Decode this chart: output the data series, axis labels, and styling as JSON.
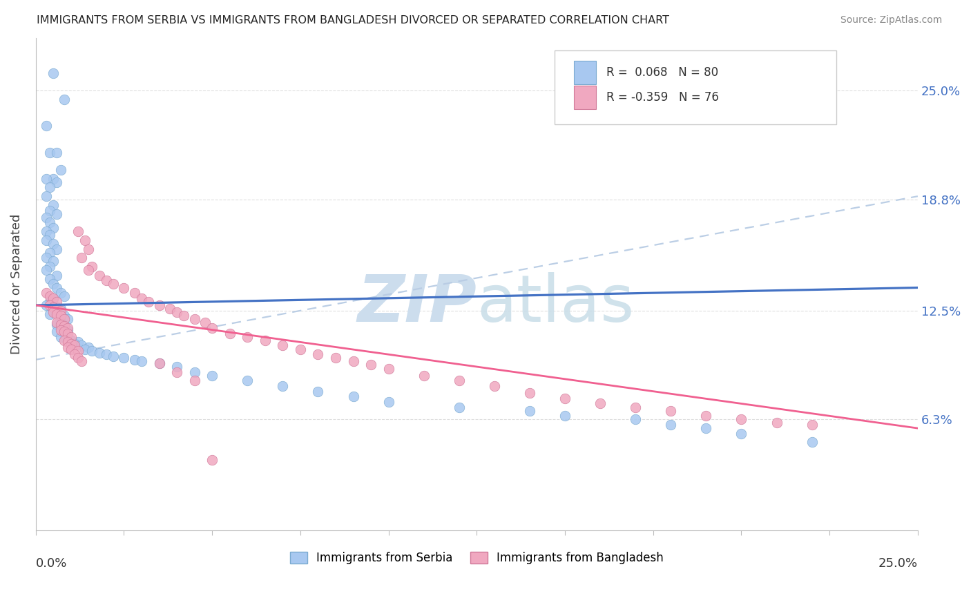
{
  "title": "IMMIGRANTS FROM SERBIA VS IMMIGRANTS FROM BANGLADESH DIVORCED OR SEPARATED CORRELATION CHART",
  "source": "Source: ZipAtlas.com",
  "ylabel": "Divorced or Separated",
  "ytick_labels": [
    "6.3%",
    "12.5%",
    "18.8%",
    "25.0%"
  ],
  "ytick_values": [
    0.063,
    0.125,
    0.188,
    0.25
  ],
  "xlim": [
    0.0,
    0.25
  ],
  "ylim": [
    0.0,
    0.28
  ],
  "serbia_color": "#a8c8f0",
  "serbia_edge_color": "#7aaad0",
  "bangladesh_color": "#f0a8c0",
  "bangladesh_edge_color": "#d07898",
  "serbia_line_color": "#4472c4",
  "bangladesh_line_color": "#f06090",
  "trend_dashed_color": "#b8cce4",
  "watermark_color": "#ccdded",
  "serbia_line_x0": 0.0,
  "serbia_line_x1": 0.25,
  "serbia_line_y0": 0.128,
  "serbia_line_y1": 0.138,
  "bangladesh_line_x0": 0.0,
  "bangladesh_line_x1": 0.25,
  "bangladesh_line_y0": 0.128,
  "bangladesh_line_y1": 0.058,
  "dashed_line_x0": 0.0,
  "dashed_line_x1": 0.25,
  "dashed_line_y0": 0.097,
  "dashed_line_y1": 0.19,
  "serbia_scatter_x": [
    0.005,
    0.008,
    0.003,
    0.004,
    0.006,
    0.007,
    0.005,
    0.003,
    0.006,
    0.004,
    0.003,
    0.005,
    0.004,
    0.006,
    0.003,
    0.004,
    0.005,
    0.003,
    0.004,
    0.003,
    0.005,
    0.006,
    0.004,
    0.003,
    0.005,
    0.004,
    0.003,
    0.006,
    0.004,
    0.005,
    0.006,
    0.007,
    0.008,
    0.005,
    0.004,
    0.003,
    0.006,
    0.007,
    0.005,
    0.004,
    0.008,
    0.009,
    0.007,
    0.006,
    0.008,
    0.007,
    0.009,
    0.006,
    0.008,
    0.007,
    0.01,
    0.012,
    0.011,
    0.013,
    0.015,
    0.014,
    0.016,
    0.018,
    0.02,
    0.022,
    0.025,
    0.028,
    0.03,
    0.035,
    0.04,
    0.045,
    0.05,
    0.06,
    0.07,
    0.08,
    0.09,
    0.1,
    0.12,
    0.14,
    0.15,
    0.17,
    0.18,
    0.19,
    0.2,
    0.22
  ],
  "serbia_scatter_y": [
    0.26,
    0.245,
    0.23,
    0.215,
    0.215,
    0.205,
    0.2,
    0.2,
    0.198,
    0.195,
    0.19,
    0.185,
    0.182,
    0.18,
    0.178,
    0.175,
    0.172,
    0.17,
    0.168,
    0.165,
    0.163,
    0.16,
    0.158,
    0.155,
    0.153,
    0.15,
    0.148,
    0.145,
    0.143,
    0.14,
    0.138,
    0.135,
    0.133,
    0.132,
    0.13,
    0.128,
    0.127,
    0.126,
    0.125,
    0.123,
    0.122,
    0.12,
    0.118,
    0.117,
    0.116,
    0.115,
    0.114,
    0.113,
    0.112,
    0.11,
    0.108,
    0.107,
    0.106,
    0.105,
    0.104,
    0.103,
    0.102,
    0.101,
    0.1,
    0.099,
    0.098,
    0.097,
    0.096,
    0.095,
    0.093,
    0.09,
    0.088,
    0.085,
    0.082,
    0.079,
    0.076,
    0.073,
    0.07,
    0.068,
    0.065,
    0.063,
    0.06,
    0.058,
    0.055,
    0.05
  ],
  "bangladesh_scatter_x": [
    0.003,
    0.004,
    0.005,
    0.006,
    0.004,
    0.005,
    0.006,
    0.007,
    0.005,
    0.006,
    0.007,
    0.008,
    0.006,
    0.007,
    0.008,
    0.009,
    0.007,
    0.008,
    0.009,
    0.01,
    0.008,
    0.009,
    0.01,
    0.011,
    0.009,
    0.01,
    0.012,
    0.011,
    0.012,
    0.013,
    0.012,
    0.014,
    0.015,
    0.013,
    0.016,
    0.015,
    0.018,
    0.02,
    0.022,
    0.025,
    0.028,
    0.03,
    0.032,
    0.035,
    0.038,
    0.04,
    0.042,
    0.045,
    0.048,
    0.05,
    0.055,
    0.06,
    0.065,
    0.07,
    0.075,
    0.08,
    0.085,
    0.09,
    0.095,
    0.1,
    0.11,
    0.12,
    0.13,
    0.14,
    0.15,
    0.16,
    0.17,
    0.18,
    0.19,
    0.2,
    0.21,
    0.22,
    0.035,
    0.04,
    0.045,
    0.05
  ],
  "bangladesh_scatter_y": [
    0.135,
    0.133,
    0.132,
    0.13,
    0.128,
    0.127,
    0.126,
    0.125,
    0.124,
    0.123,
    0.122,
    0.12,
    0.118,
    0.117,
    0.116,
    0.115,
    0.114,
    0.113,
    0.112,
    0.11,
    0.108,
    0.107,
    0.106,
    0.105,
    0.104,
    0.103,
    0.102,
    0.1,
    0.098,
    0.096,
    0.17,
    0.165,
    0.16,
    0.155,
    0.15,
    0.148,
    0.145,
    0.142,
    0.14,
    0.138,
    0.135,
    0.132,
    0.13,
    0.128,
    0.126,
    0.124,
    0.122,
    0.12,
    0.118,
    0.115,
    0.112,
    0.11,
    0.108,
    0.105,
    0.103,
    0.1,
    0.098,
    0.096,
    0.094,
    0.092,
    0.088,
    0.085,
    0.082,
    0.078,
    0.075,
    0.072,
    0.07,
    0.068,
    0.065,
    0.063,
    0.061,
    0.06,
    0.095,
    0.09,
    0.085,
    0.04
  ]
}
